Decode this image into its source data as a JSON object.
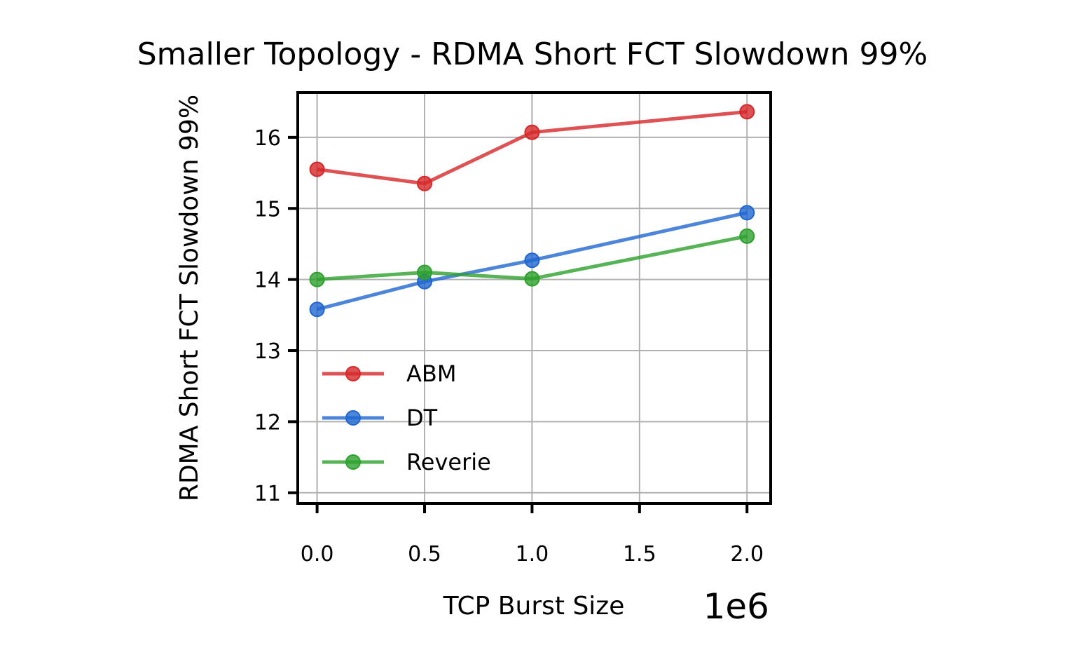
{
  "chart_data": {
    "type": "line",
    "title": "Smaller Topology - RDMA Short FCT Slowdown 99%",
    "xlabel": "TCP Burst Size",
    "ylabel": "RDMA Short FCT Slowdown 99%",
    "x_offset_label": "1e6",
    "x": [
      0,
      0.5,
      1.0,
      2.0
    ],
    "xlim": [
      -0.09,
      2.11
    ],
    "ylim": [
      10.85,
      16.63
    ],
    "x_ticks": [
      0,
      0.5,
      1.0,
      1.5,
      2.0
    ],
    "x_tick_labels": [
      "0.0",
      "0.5",
      "1.0",
      "1.5",
      "2.0"
    ],
    "y_ticks": [
      11,
      12,
      13,
      14,
      15,
      16
    ],
    "y_tick_labels": [
      "11",
      "12",
      "13",
      "14",
      "15",
      "16"
    ],
    "grid": true,
    "legend_position": "lower-left",
    "series": [
      {
        "name": "ABM",
        "color": "#d62728",
        "values": [
          15.55,
          15.35,
          16.07,
          16.36
        ]
      },
      {
        "name": "DT",
        "color": "#1f66d1",
        "values": [
          13.58,
          13.97,
          14.27,
          14.94
        ]
      },
      {
        "name": "Reverie",
        "color": "#2ca02c",
        "values": [
          14.0,
          14.1,
          14.01,
          14.61
        ]
      }
    ]
  }
}
